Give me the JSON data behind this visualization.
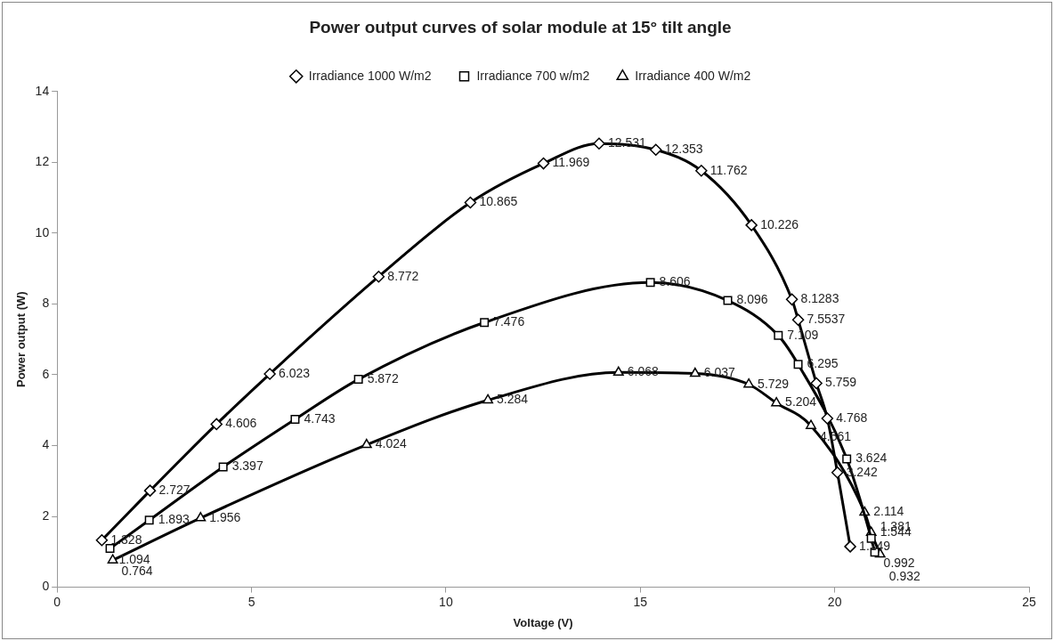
{
  "chart_data": {
    "type": "line",
    "title": "Power output curves of solar module at 15° tilt angle",
    "xlabel": "Voltage (V)",
    "ylabel": "Power output (W)",
    "xlim": [
      0,
      25
    ],
    "xticks": [
      0,
      5,
      10,
      15,
      20,
      25
    ],
    "ylim": [
      0,
      14
    ],
    "yticks": [
      0,
      2,
      4,
      6,
      8,
      10,
      12,
      14
    ],
    "grid": false,
    "legend": "top",
    "data_labels": true,
    "line_style": "solid",
    "series": [
      {
        "name": "Irradiance 1000 W/m2",
        "color": "#000000",
        "marker": "diamond",
        "x": [
          1.15,
          2.39,
          4.1,
          5.47,
          8.27,
          10.63,
          12.51,
          13.94,
          15.4,
          16.57,
          17.86,
          18.9,
          19.06,
          19.53,
          19.81,
          20.07,
          20.4
        ],
        "values": [
          1.328,
          2.727,
          4.606,
          6.023,
          8.772,
          10.865,
          11.969,
          12.531,
          12.353,
          11.762,
          10.226,
          8.1283,
          7.5537,
          5.759,
          4.768,
          3.242,
          1.149
        ]
      },
      {
        "name": "Irradiance 700 w/m2",
        "color": "#000000",
        "marker": "square",
        "x": [
          1.36,
          2.37,
          4.27,
          6.12,
          7.75,
          10.99,
          15.26,
          17.25,
          18.55,
          19.06,
          20.31,
          20.94,
          21.03
        ],
        "values": [
          1.094,
          1.893,
          3.397,
          4.743,
          5.872,
          7.476,
          8.606,
          8.096,
          7.109,
          6.295,
          3.624,
          1.381,
          0.992
        ]
      },
      {
        "name": "Irradiance 400 W/m2",
        "color": "#000000",
        "marker": "triangle",
        "x": [
          1.43,
          3.69,
          7.96,
          11.08,
          14.44,
          16.41,
          17.79,
          18.5,
          19.39,
          20.77,
          20.94,
          21.17
        ],
        "values": [
          0.764,
          1.956,
          4.024,
          5.284,
          6.068,
          6.037,
          5.729,
          5.204,
          4.561,
          2.114,
          1.544,
          0.932
        ]
      }
    ]
  }
}
